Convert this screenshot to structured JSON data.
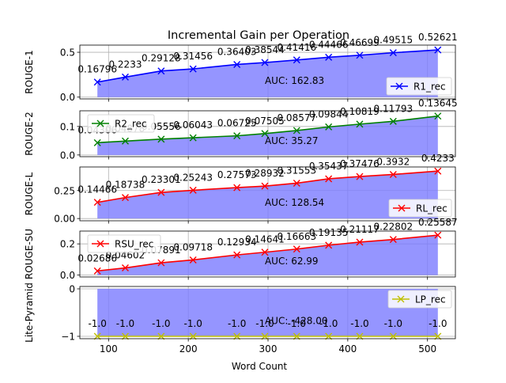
{
  "chart_data": {
    "type": "line",
    "title": "Incremental Gain per Operation",
    "xlabel": "Word Count",
    "x": [
      86,
      121,
      166,
      206,
      261,
      296,
      336,
      376,
      415,
      457,
      513
    ],
    "xlim": [
      64,
      535
    ],
    "xticks": [
      100,
      200,
      300,
      400,
      500
    ],
    "grid": true,
    "panels": [
      {
        "ylabel": "ROUGE-1",
        "series_name": "R1_rec",
        "color": "#0000ff",
        "values": [
          0.16796,
          0.2233,
          0.29128,
          0.31456,
          0.36403,
          0.38544,
          0.41416,
          0.44466,
          0.46699,
          0.49515,
          0.52621
        ],
        "labels": [
          "0.16796",
          "0.2233",
          "0.29128",
          "0.31456",
          "0.36403",
          "0.38544",
          "0.41416",
          "0.44466",
          "0.46699",
          "0.49515",
          "0.52621"
        ],
        "ylim": [
          -0.02,
          0.58
        ],
        "yticks": [
          0.0,
          0.5
        ],
        "yticklabels": [
          "0.0",
          "0.5"
        ],
        "auc": "AUC: 162.83",
        "legend": "lower right"
      },
      {
        "ylabel": "ROUGE-2",
        "series_name": "R2_rec",
        "color": "#008000",
        "values": [
          0.04306,
          0.04878,
          0.05556,
          0.06043,
          0.06725,
          0.07505,
          0.08577,
          0.09844,
          0.10819,
          0.11793,
          0.13645
        ],
        "labels": [
          "0.04306",
          "0.04878",
          "0.05556",
          "0.06043",
          "0.06725",
          "0.07505",
          "0.08577",
          "0.09844",
          "0.10819",
          "0.11793",
          "0.13645"
        ],
        "ylim": [
          -0.006,
          0.155
        ],
        "yticks": [
          0.0,
          0.1
        ],
        "yticklabels": [
          "0.0",
          "0.1"
        ],
        "auc": "AUC: 35.27",
        "legend": "upper left"
      },
      {
        "ylabel": "ROUGE-L",
        "series_name": "RL_rec",
        "color": "#ff0000",
        "values": [
          0.14466,
          0.18738,
          0.23301,
          0.25243,
          0.27573,
          0.28932,
          0.31553,
          0.35437,
          0.37476,
          0.3932,
          0.4233
        ],
        "labels": [
          "0.14466",
          "0.18738",
          "0.23301",
          "0.25243",
          "0.27573",
          "0.28932",
          "0.31553",
          "0.35437",
          "0.37476",
          "0.3932",
          "0.4233"
        ],
        "ylim": [
          -0.02,
          0.46
        ],
        "yticks": [
          0.0,
          0.25
        ],
        "yticklabels": [
          "0.00",
          "0.25"
        ],
        "auc": "AUC: 128.54",
        "legend": "lower right"
      },
      {
        "ylabel": "ROUGE-SU",
        "series_name": "RSU_rec",
        "color": "#ff0000",
        "values": [
          0.02686,
          0.04602,
          0.07891,
          0.09718,
          0.12934,
          0.14641,
          0.16663,
          0.19135,
          0.21117,
          0.22802,
          0.25587
        ],
        "labels": [
          "0.02686",
          "0.04602",
          "0.07891",
          "0.09718",
          "0.12934",
          "0.14641",
          "0.16663",
          "0.19135",
          "0.21117",
          "0.22802",
          "0.25587"
        ],
        "ylim": [
          -0.012,
          0.282
        ],
        "yticks": [
          0.0,
          0.2
        ],
        "yticklabels": [
          "0.0",
          "0.2"
        ],
        "auc": "AUC: 62.99",
        "legend": "upper left"
      },
      {
        "ylabel": "Lite-Pyramid",
        "series_name": "LP_rec",
        "color": "#bfbf00",
        "values": [
          -1.0,
          -1.0,
          -1.0,
          -1.0,
          -1.0,
          -1.0,
          -1.0,
          -1.0,
          -1.0,
          -1.0,
          -1.0
        ],
        "labels": [
          "-1.0",
          "-1.0",
          "-1.0",
          "-1.0",
          "-1.0",
          "-1.0",
          "-1.0",
          "-1.0",
          "-1.0",
          "-1.0",
          "-1.0"
        ],
        "ylim": [
          -1.05,
          0.05
        ],
        "yticks": [
          0,
          -1
        ],
        "yticklabels": [
          "0",
          "−1"
        ],
        "auc": "AUC: -428.00",
        "legend": "upper right"
      }
    ]
  }
}
